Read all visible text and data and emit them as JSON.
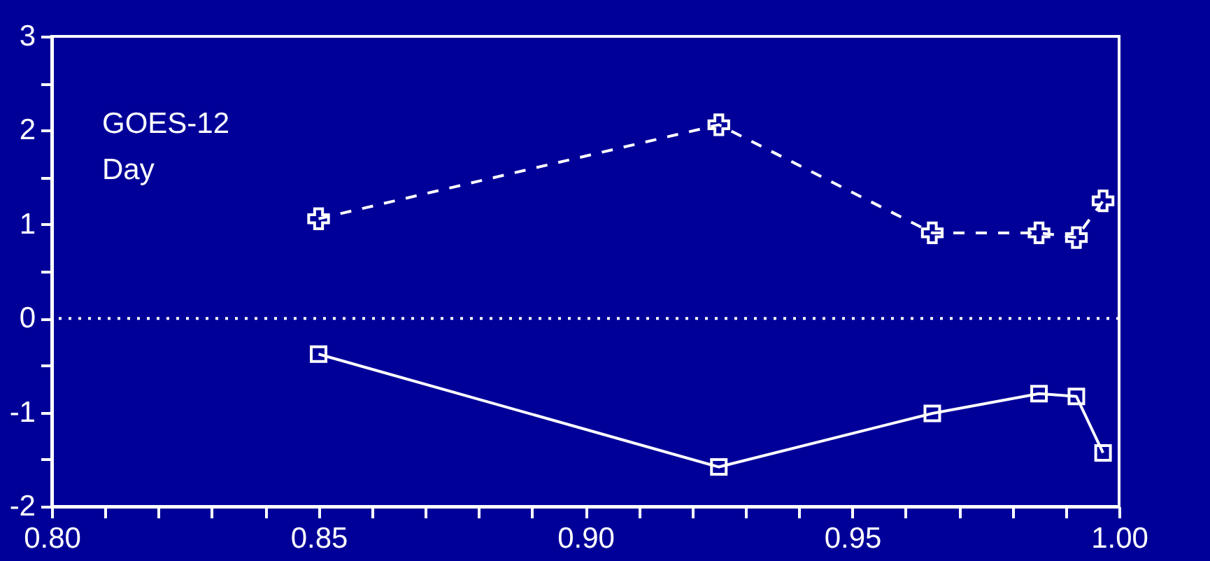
{
  "chart_data": {
    "type": "line",
    "annotations": [
      "GOES-12",
      "Day"
    ],
    "x": [
      0.85,
      0.925,
      0.965,
      0.985,
      0.992,
      0.997
    ],
    "series": [
      {
        "color": "#ffffff",
        "marker": "cross",
        "line_style": "dashed",
        "values": [
          1.06,
          2.06,
          0.91,
          0.91,
          0.86,
          1.25
        ]
      },
      {
        "color": "#ffffff",
        "marker": "square",
        "line_style": "solid",
        "values": [
          -0.38,
          -1.58,
          -1.01,
          -0.8,
          -0.83,
          -1.43
        ]
      }
    ],
    "xlim": [
      0.8,
      1.0
    ],
    "xticks": [
      {
        "value": 0.8,
        "label": "0.80"
      },
      {
        "value": 0.81,
        "label": null
      },
      {
        "value": 0.82,
        "label": null
      },
      {
        "value": 0.83,
        "label": null
      },
      {
        "value": 0.84,
        "label": null
      },
      {
        "value": 0.85,
        "label": "0.85"
      },
      {
        "value": 0.86,
        "label": null
      },
      {
        "value": 0.87,
        "label": null
      },
      {
        "value": 0.88,
        "label": null
      },
      {
        "value": 0.89,
        "label": null
      },
      {
        "value": 0.9,
        "label": "0.90"
      },
      {
        "value": 0.91,
        "label": null
      },
      {
        "value": 0.92,
        "label": null
      },
      {
        "value": 0.93,
        "label": null
      },
      {
        "value": 0.94,
        "label": null
      },
      {
        "value": 0.95,
        "label": "0.95"
      },
      {
        "value": 0.96,
        "label": null
      },
      {
        "value": 0.97,
        "label": null
      },
      {
        "value": 0.98,
        "label": null
      },
      {
        "value": 0.99,
        "label": null
      },
      {
        "value": 1.0,
        "label": "1.00"
      }
    ],
    "ylim": [
      -2,
      3
    ],
    "yticks": [
      -2,
      {
        "value": -1.5,
        "label": null
      },
      -1,
      {
        "value": -0.5,
        "label": null
      },
      0,
      {
        "value": 0.5,
        "label": null
      },
      1,
      {
        "value": 1.5,
        "label": null
      },
      2,
      {
        "value": 2.5,
        "label": null
      },
      3
    ],
    "ref_lines": [
      {
        "axis": "y",
        "value": 0,
        "color": "#ffffff",
        "line_style": "dotted"
      }
    ]
  }
}
